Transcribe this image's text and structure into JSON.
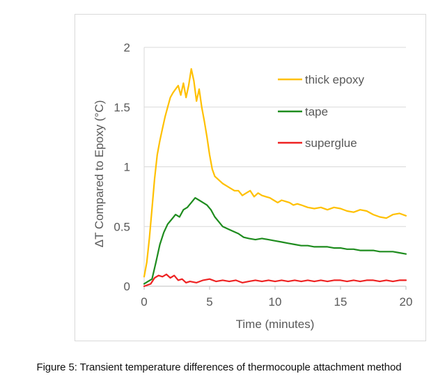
{
  "caption": "Figure 5: Transient temperature differences of thermocouple attachment method",
  "chart_data": {
    "type": "line",
    "title": "",
    "xlabel": "Time (minutes)",
    "ylabel": "ΔT Compared to Epoxy (°C)",
    "xlim": [
      0,
      20
    ],
    "ylim": [
      0,
      2
    ],
    "x_ticks": [
      0,
      5,
      10,
      15,
      20
    ],
    "y_ticks": [
      0,
      0.5,
      1,
      1.5,
      2
    ],
    "x_tick_labels": [
      "0",
      "5",
      "10",
      "15",
      "20"
    ],
    "y_tick_labels": [
      "0",
      "0.5",
      "1",
      "1.5",
      "2"
    ],
    "grid": "horizontal",
    "legend_position": "top-right",
    "series": [
      {
        "name": "thick epoxy",
        "color": "#ffc000",
        "x": [
          0,
          0.2,
          0.4,
          0.6,
          0.8,
          1.0,
          1.2,
          1.4,
          1.6,
          1.8,
          2.0,
          2.2,
          2.4,
          2.6,
          2.8,
          3.0,
          3.2,
          3.4,
          3.6,
          3.8,
          4.0,
          4.2,
          4.4,
          4.6,
          4.8,
          5.0,
          5.2,
          5.4,
          5.6,
          5.8,
          6.0,
          6.3,
          6.6,
          6.9,
          7.2,
          7.5,
          7.8,
          8.1,
          8.4,
          8.7,
          9.0,
          9.3,
          9.6,
          9.9,
          10.2,
          10.5,
          10.8,
          11.1,
          11.4,
          11.7,
          12.0,
          12.5,
          13.0,
          13.5,
          14.0,
          14.5,
          15.0,
          15.5,
          16.0,
          16.5,
          17.0,
          17.5,
          18.0,
          18.5,
          19.0,
          19.5,
          20.0
        ],
        "values": [
          0.08,
          0.2,
          0.4,
          0.65,
          0.9,
          1.1,
          1.22,
          1.32,
          1.42,
          1.5,
          1.58,
          1.62,
          1.65,
          1.68,
          1.6,
          1.7,
          1.58,
          1.68,
          1.82,
          1.72,
          1.55,
          1.65,
          1.5,
          1.38,
          1.25,
          1.1,
          0.98,
          0.92,
          0.9,
          0.88,
          0.86,
          0.84,
          0.82,
          0.8,
          0.8,
          0.76,
          0.78,
          0.8,
          0.75,
          0.78,
          0.76,
          0.75,
          0.74,
          0.72,
          0.7,
          0.72,
          0.71,
          0.7,
          0.68,
          0.69,
          0.68,
          0.66,
          0.65,
          0.66,
          0.64,
          0.66,
          0.65,
          0.63,
          0.62,
          0.64,
          0.63,
          0.6,
          0.58,
          0.57,
          0.6,
          0.61,
          0.59
        ]
      },
      {
        "name": "tape",
        "color": "#1e8c1e",
        "x": [
          0,
          0.3,
          0.6,
          0.9,
          1.2,
          1.5,
          1.8,
          2.1,
          2.4,
          2.7,
          3.0,
          3.3,
          3.6,
          3.9,
          4.2,
          4.5,
          4.8,
          5.1,
          5.4,
          5.7,
          6.0,
          6.4,
          6.8,
          7.2,
          7.6,
          8.0,
          8.5,
          9.0,
          9.5,
          10.0,
          10.5,
          11.0,
          11.5,
          12.0,
          12.5,
          13.0,
          13.5,
          14.0,
          14.5,
          15.0,
          15.5,
          16.0,
          16.5,
          17.0,
          17.5,
          18.0,
          18.5,
          19.0,
          19.5,
          20.0
        ],
        "values": [
          0.02,
          0.04,
          0.06,
          0.2,
          0.35,
          0.45,
          0.52,
          0.56,
          0.6,
          0.58,
          0.64,
          0.66,
          0.7,
          0.74,
          0.72,
          0.7,
          0.68,
          0.64,
          0.58,
          0.54,
          0.5,
          0.48,
          0.46,
          0.44,
          0.41,
          0.4,
          0.39,
          0.4,
          0.39,
          0.38,
          0.37,
          0.36,
          0.35,
          0.34,
          0.34,
          0.33,
          0.33,
          0.33,
          0.32,
          0.32,
          0.31,
          0.31,
          0.3,
          0.3,
          0.3,
          0.29,
          0.29,
          0.29,
          0.28,
          0.27
        ]
      },
      {
        "name": "superglue",
        "color": "#ee2222",
        "x": [
          0,
          0.5,
          0.8,
          1.1,
          1.4,
          1.7,
          2.0,
          2.3,
          2.6,
          2.9,
          3.2,
          3.5,
          4.0,
          4.5,
          5.0,
          5.5,
          6.0,
          6.5,
          7.0,
          7.5,
          8.0,
          8.5,
          9.0,
          9.5,
          10.0,
          10.5,
          11.0,
          11.5,
          12.0,
          12.5,
          13.0,
          13.5,
          14.0,
          14.5,
          15.0,
          15.5,
          16.0,
          16.5,
          17.0,
          17.5,
          18.0,
          18.5,
          19.0,
          19.5,
          20.0
        ],
        "values": [
          0.0,
          0.02,
          0.07,
          0.09,
          0.08,
          0.1,
          0.07,
          0.09,
          0.05,
          0.06,
          0.03,
          0.04,
          0.03,
          0.05,
          0.06,
          0.04,
          0.05,
          0.04,
          0.05,
          0.03,
          0.04,
          0.05,
          0.04,
          0.05,
          0.04,
          0.05,
          0.04,
          0.05,
          0.04,
          0.05,
          0.04,
          0.05,
          0.04,
          0.05,
          0.05,
          0.04,
          0.05,
          0.04,
          0.05,
          0.05,
          0.04,
          0.05,
          0.04,
          0.05,
          0.05
        ]
      }
    ]
  }
}
